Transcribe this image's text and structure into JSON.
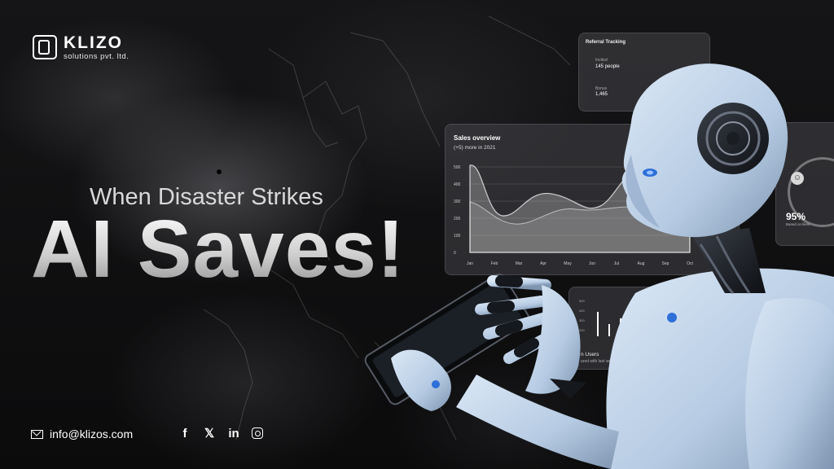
{
  "brand": {
    "name": "KLIZO",
    "subtitle": "solutions pvt. ltd.",
    "logo_icon": "klizo-logo-icon"
  },
  "hero": {
    "tagline": "When Disaster Strikes",
    "headline": "AI Saves!"
  },
  "footer": {
    "email": "info@klizos.com",
    "mail_icon": "mail-icon",
    "socials": [
      {
        "name": "facebook-icon",
        "glyph": "f"
      },
      {
        "name": "x-icon",
        "glyph": "𝕏"
      },
      {
        "name": "linkedin-icon",
        "glyph": "in"
      },
      {
        "name": "instagram-icon",
        "glyph": ""
      }
    ]
  },
  "panels": {
    "sales_overview": {
      "title": "Sales overview",
      "subtitle": "(+5) more in 2021",
      "y_ticks": [
        "500",
        "400",
        "300",
        "200",
        "100",
        "0"
      ],
      "months": [
        "Jan",
        "Feb",
        "Mar",
        "Apr",
        "May",
        "Jun",
        "Jul",
        "Aug",
        "Sep",
        "Oct"
      ]
    },
    "referral": {
      "title": "Referral Tracking",
      "invited_label": "Invited",
      "invited_value": "145 people",
      "bonus_label": "Bonus",
      "bonus_value": "1,465"
    },
    "active_users": {
      "label": "n Users",
      "sub": "ared with last week"
    },
    "satisfaction": {
      "percent": "95%",
      "sub": "Based on likes"
    }
  },
  "colors": {
    "accent": "#ffffff",
    "robot_face": "#bcd3ee",
    "robot_eye": "#2e6fd8",
    "background": "#0d0d0f"
  }
}
